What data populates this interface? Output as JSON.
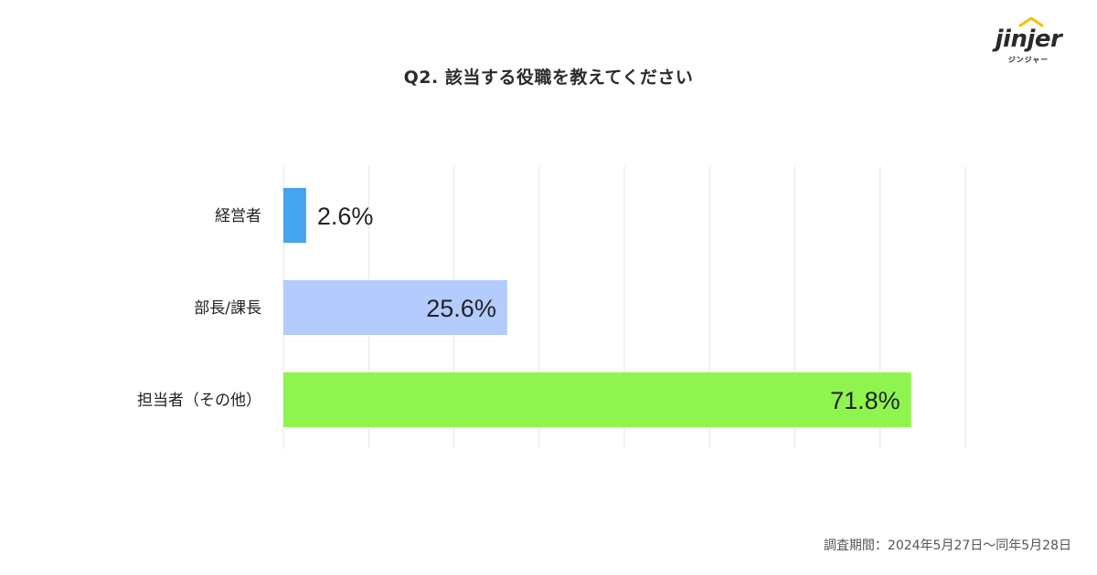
{
  "title": "Q2. 該当する役職を教えてください",
  "logo": {
    "word": "jinjer",
    "kana": "ジンジャー"
  },
  "footnote": "調査期間：2024年5月27日〜同年5月28日",
  "chart_data": {
    "type": "bar",
    "orientation": "horizontal",
    "title": "Q2. 該当する役職を教えてください",
    "categories": [
      "経営者",
      "部長/課長",
      "担当者（その他）"
    ],
    "values": [
      2.6,
      25.6,
      71.8
    ],
    "value_labels": [
      "2.6%",
      "25.6%",
      "71.8%"
    ],
    "colors": [
      "#45a3f0",
      "#b3cbfd",
      "#8ef54e"
    ],
    "xlim": [
      0,
      78
    ],
    "grid": true,
    "legend": false
  }
}
